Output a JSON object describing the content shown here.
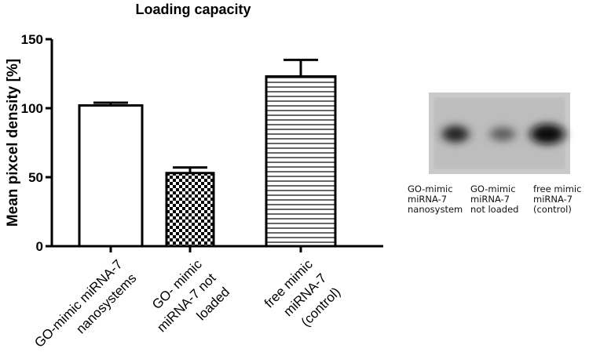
{
  "chart_data": {
    "type": "bar",
    "title": "Loading capacity",
    "ylabel": "Mean pixcel density [%]",
    "xlabel": "",
    "ylim": [
      0,
      150
    ],
    "yticks": [
      "0",
      "50",
      "100",
      "150"
    ],
    "categories": [
      [
        "GO-mimic miRNA-7",
        "nanosystems"
      ],
      [
        "GO- mimic",
        "miRNA-7 not",
        "loaded"
      ],
      [
        "free mimic",
        "miRNA-7",
        "(control)"
      ]
    ],
    "values": [
      102,
      53,
      123
    ],
    "errors": [
      2,
      4,
      12
    ],
    "fills": [
      "blank",
      "checkerboard",
      "horizontal-stripes"
    ],
    "grid": false,
    "legend": "none"
  },
  "blot": {
    "lane_labels": [
      [
        "GO-mimic",
        "miRNA-7",
        "nanosystem"
      ],
      [
        "GO-mimic",
        "miRNA-7",
        "not loaded"
      ],
      [
        "free mimic",
        "miRNA-7",
        "(control)"
      ]
    ],
    "band_intensity": [
      0.85,
      0.55,
      1.0
    ]
  }
}
